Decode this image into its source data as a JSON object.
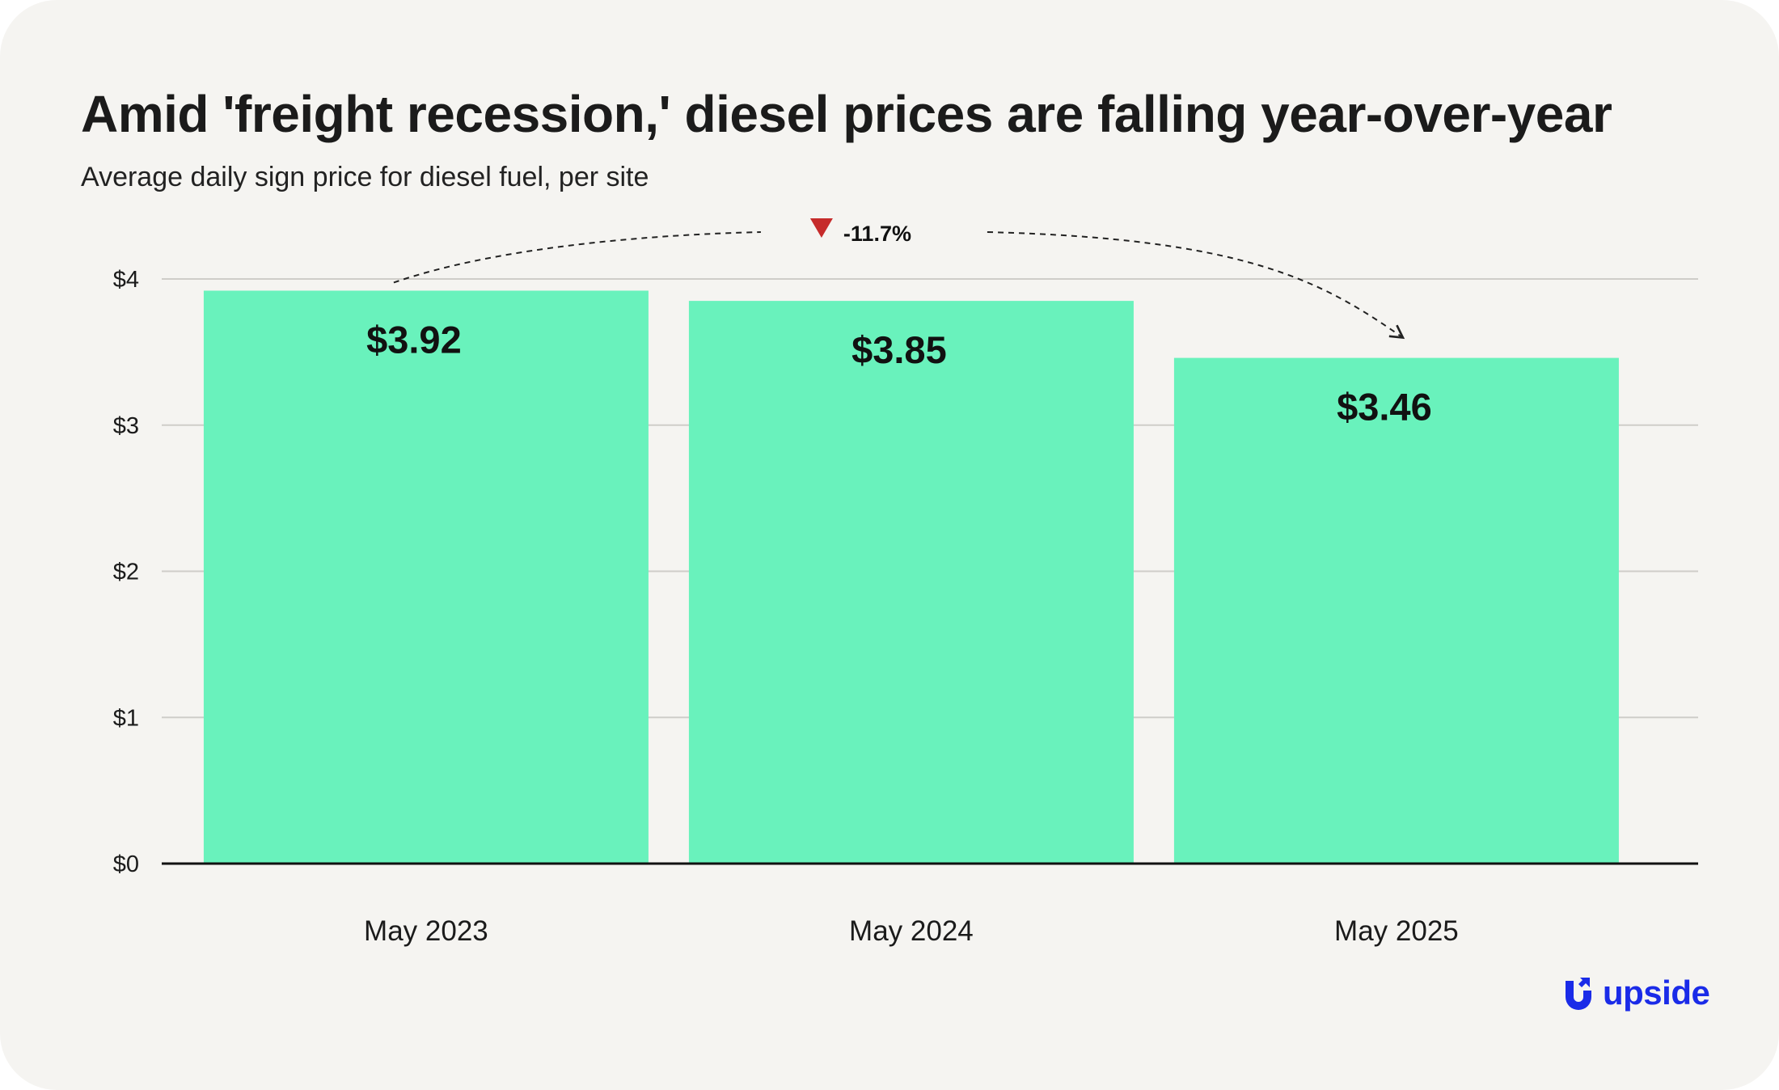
{
  "chart_data": {
    "type": "bar",
    "title": "Amid 'freight recession,' diesel prices are falling year-over-year",
    "subtitle": "Average daily sign price for diesel fuel, per site",
    "categories": [
      "May 2023",
      "May 2024",
      "May 2025"
    ],
    "values": [
      3.92,
      3.85,
      3.46
    ],
    "data_labels": [
      "$3.92",
      "$3.85",
      "$3.46"
    ],
    "ylim": [
      0,
      4
    ],
    "yticks": [
      0,
      1,
      2,
      3,
      4
    ],
    "ytick_labels": [
      "$0",
      "$1",
      "$2",
      "$3",
      "$4"
    ],
    "grid": true,
    "bar_color": "#69f2bc",
    "annotation": {
      "text": "-11.7%",
      "from": "May 2023",
      "to": "May 2025",
      "marker_color": "#c62b2b"
    }
  },
  "brand": {
    "name": "upside",
    "icon": "upside-logo-icon",
    "color": "#1a2be8"
  }
}
